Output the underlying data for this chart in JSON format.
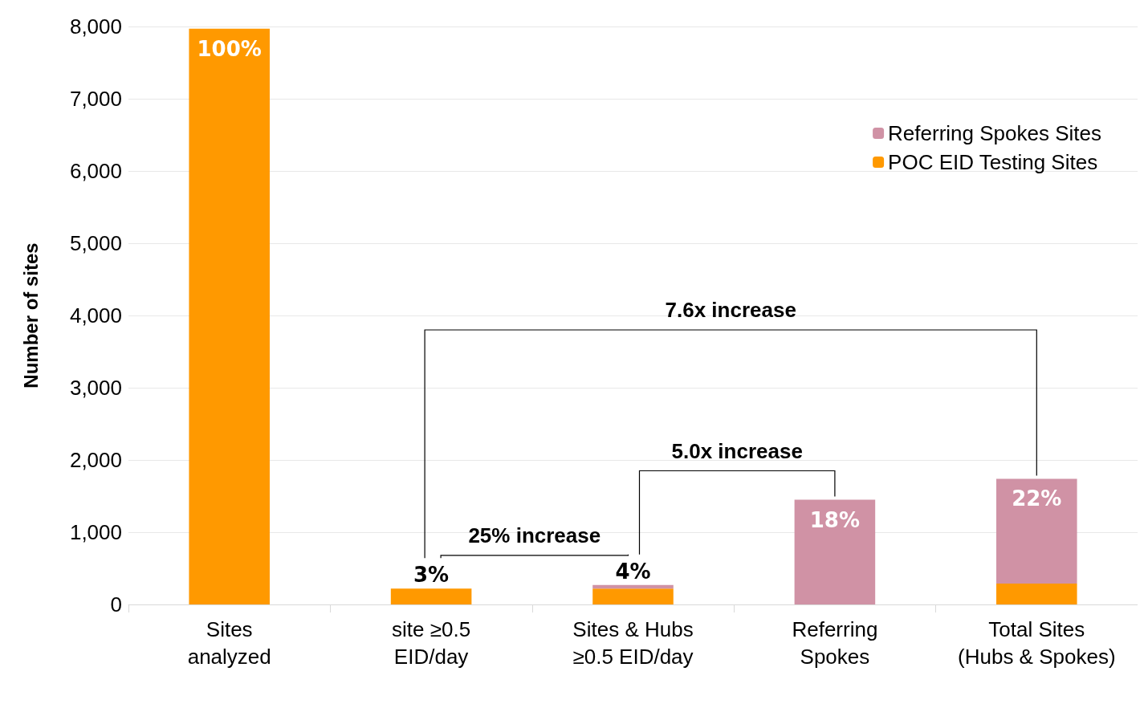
{
  "chart_data": {
    "type": "bar",
    "stacked": true,
    "ylabel": "Number of sites",
    "categories": [
      "Sites\nanalyzed",
      "site ≥0.5\nEID/day",
      "Sites & Hubs\n≥0.5 EID/day",
      "Referring\nSpokes",
      "Total Sites\n(Hubs & Spokes)"
    ],
    "series": [
      {
        "name": "POC EID Testing Sites",
        "color": "#ff9900",
        "values": [
          7970,
          220,
          220,
          0,
          290
        ]
      },
      {
        "name": "Referring Spokes Sites",
        "color": "#d092a5",
        "values": [
          0,
          0,
          50,
          1450,
          1450
        ]
      }
    ],
    "ylim": [
      0,
      8000
    ],
    "yticks": [
      {
        "value": 0,
        "label": "0"
      },
      {
        "value": 1000,
        "label": "1,000"
      },
      {
        "value": 2000,
        "label": "2,000"
      },
      {
        "value": 3000,
        "label": "3,000"
      },
      {
        "value": 4000,
        "label": "4,000"
      },
      {
        "value": 5000,
        "label": "5,000"
      },
      {
        "value": 6000,
        "label": "6,000"
      },
      {
        "value": 7000,
        "label": "7,000"
      },
      {
        "value": 8000,
        "label": "8,000"
      }
    ],
    "grid": "y",
    "legend": "top right",
    "annotations": [
      "7.6x increase",
      "5.0x increase",
      "25% increase",
      {
        "text": "100%",
        "x": "Sites\nanalyzed",
        "y": 7970
      },
      {
        "text": "3%",
        "x": "site ≥0.5\nEID/day",
        "y": 220
      },
      {
        "text": "4%",
        "x": "Sites & Hubs\n≥0.5 EID/day",
        "y": 270
      },
      {
        "text": "18%",
        "x": "Referring\nSpokes",
        "y": 1450
      },
      {
        "text": "22%",
        "x": "Total Sites\n(Hubs & Spokes)",
        "y": 1740
      }
    ]
  }
}
